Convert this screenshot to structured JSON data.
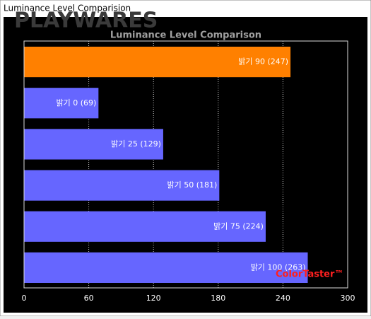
{
  "window": {
    "title": "Luminance Level Comparision"
  },
  "watermark": "PLAYWARES",
  "chart_data": {
    "type": "bar",
    "orientation": "horizontal",
    "title": "Luminance Level Comparison",
    "values": [
      247,
      69,
      129,
      181,
      224,
      263
    ],
    "value_labels": [
      "밝기 90 (247)",
      "밝기 0 (69)",
      "밝기 25 (129)",
      "밝기 50 (181)",
      "밝기 75 (224)",
      "밝기 100 (263)"
    ],
    "colors": [
      "#ff8000",
      "#6666ff",
      "#6666ff",
      "#6666ff",
      "#6666ff",
      "#6666ff"
    ],
    "xlim": [
      0,
      300
    ],
    "xticks": [
      0,
      60,
      120,
      180,
      240,
      300
    ],
    "grid": true,
    "annotation": "ColorTaster™"
  }
}
